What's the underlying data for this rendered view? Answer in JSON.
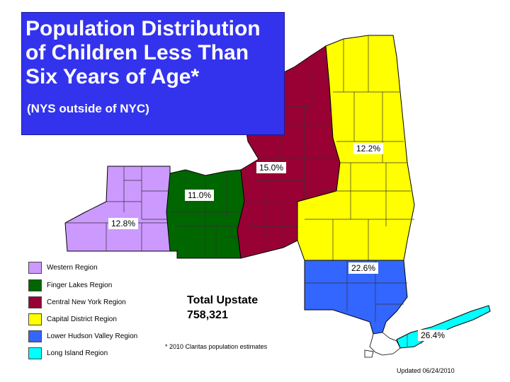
{
  "title": {
    "main": "Population Distribution\nof Children Less Than\nSix Years of Age*",
    "subtitle": "(NYS outside of NYC)"
  },
  "regions": [
    {
      "name": "Western Region",
      "color": "#cc99ff",
      "percent": "12.8%"
    },
    {
      "name": "Finger Lakes Region",
      "color": "#006600",
      "percent": "11.0%"
    },
    {
      "name": "Central New York Region",
      "color": "#990033",
      "percent": "15.0%"
    },
    {
      "name": "Capital District Region",
      "color": "#ffff00",
      "percent": "12.2%"
    },
    {
      "name": "Lower Hudson Valley Region",
      "color": "#3366ff",
      "percent": "22.6%"
    },
    {
      "name": "Long Island Region",
      "color": "#00ffff",
      "percent": "26.4%"
    }
  ],
  "total": {
    "label": "Total Upstate",
    "value": "758,321"
  },
  "footnote": "* 2010 Claritas population estimates",
  "updated": "Updated 06/24/2010"
}
